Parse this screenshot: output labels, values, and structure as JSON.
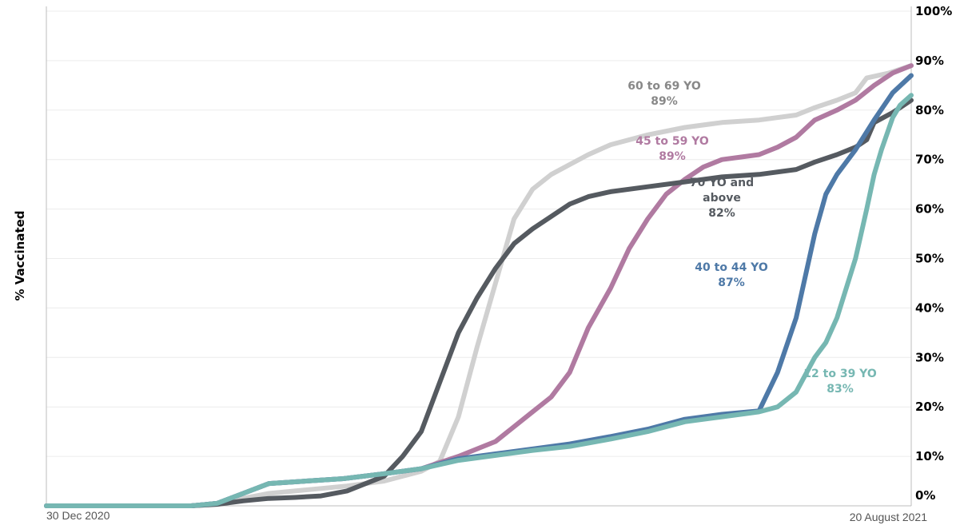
{
  "chart_data": {
    "type": "line",
    "ylabel": "% Vaccinated",
    "xlabel": "",
    "x_start_label": "30 Dec 2020",
    "x_end_label": "20 August 2021",
    "x_range": [
      "2020-12-30",
      "2021-08-20"
    ],
    "ylim": [
      0,
      100
    ],
    "y_ticks": [
      "0%",
      "10%",
      "20%",
      "30%",
      "40%",
      "50%",
      "60%",
      "70%",
      "80%",
      "90%",
      "100%"
    ],
    "y_axis_side": "right",
    "grid": true,
    "legend": "inline labels",
    "series": [
      {
        "name": "60 to 69 YO",
        "final_label": "89%",
        "color": "#d0d0d0",
        "points": [
          [
            "2020-12-30",
            0
          ],
          [
            "2021-02-07",
            0
          ],
          [
            "2021-02-14",
            0.5
          ],
          [
            "2021-02-21",
            1.5
          ],
          [
            "2021-02-28",
            2.5
          ],
          [
            "2021-03-07",
            3
          ],
          [
            "2021-03-14",
            3.5
          ],
          [
            "2021-03-21",
            4
          ],
          [
            "2021-03-31",
            5
          ],
          [
            "2021-04-05",
            6
          ],
          [
            "2021-04-10",
            7
          ],
          [
            "2021-04-15",
            9
          ],
          [
            "2021-04-20",
            18
          ],
          [
            "2021-04-25",
            32
          ],
          [
            "2021-04-30",
            45
          ],
          [
            "2021-05-05",
            58
          ],
          [
            "2021-05-10",
            64
          ],
          [
            "2021-05-15",
            67
          ],
          [
            "2021-05-20",
            69
          ],
          [
            "2021-05-25",
            71
          ],
          [
            "2021-05-31",
            73
          ],
          [
            "2021-06-10",
            75
          ],
          [
            "2021-06-20",
            76.5
          ],
          [
            "2021-06-30",
            77.5
          ],
          [
            "2021-07-10",
            78
          ],
          [
            "2021-07-20",
            79
          ],
          [
            "2021-07-25",
            80.5
          ],
          [
            "2021-07-31",
            82
          ],
          [
            "2021-08-05",
            83.5
          ],
          [
            "2021-08-08",
            86.5
          ],
          [
            "2021-08-14",
            87.5
          ],
          [
            "2021-08-20",
            89
          ]
        ]
      },
      {
        "name": "45 to 59 YO",
        "final_label": "89%",
        "color": "#b07aa1",
        "points": [
          [
            "2020-12-30",
            0
          ],
          [
            "2021-02-07",
            0
          ],
          [
            "2021-02-14",
            0.5
          ],
          [
            "2021-02-21",
            2.5
          ],
          [
            "2021-02-28",
            4.5
          ],
          [
            "2021-03-10",
            5
          ],
          [
            "2021-03-20",
            5.5
          ],
          [
            "2021-03-31",
            6.5
          ],
          [
            "2021-04-10",
            7.5
          ],
          [
            "2021-04-20",
            10
          ],
          [
            "2021-04-30",
            13
          ],
          [
            "2021-05-10",
            19
          ],
          [
            "2021-05-15",
            22
          ],
          [
            "2021-05-20",
            27
          ],
          [
            "2021-05-25",
            36
          ],
          [
            "2021-05-31",
            44
          ],
          [
            "2021-06-05",
            52
          ],
          [
            "2021-06-10",
            58
          ],
          [
            "2021-06-15",
            63
          ],
          [
            "2021-06-20",
            66
          ],
          [
            "2021-06-25",
            68.5
          ],
          [
            "2021-06-30",
            70
          ],
          [
            "2021-07-05",
            70.5
          ],
          [
            "2021-07-10",
            71
          ],
          [
            "2021-07-15",
            72.5
          ],
          [
            "2021-07-20",
            74.5
          ],
          [
            "2021-07-25",
            78
          ],
          [
            "2021-07-31",
            80
          ],
          [
            "2021-08-05",
            82
          ],
          [
            "2021-08-10",
            85
          ],
          [
            "2021-08-15",
            87.5
          ],
          [
            "2021-08-20",
            89
          ]
        ]
      },
      {
        "name": "70 YO and above",
        "final_label": "82%",
        "color": "#555a60",
        "points": [
          [
            "2020-12-30",
            0
          ],
          [
            "2021-02-07",
            0
          ],
          [
            "2021-02-14",
            0.3
          ],
          [
            "2021-02-21",
            1
          ],
          [
            "2021-02-28",
            1.5
          ],
          [
            "2021-03-07",
            1.7
          ],
          [
            "2021-03-14",
            2
          ],
          [
            "2021-03-21",
            3
          ],
          [
            "2021-03-31",
            6
          ],
          [
            "2021-04-05",
            10
          ],
          [
            "2021-04-10",
            15
          ],
          [
            "2021-04-15",
            25
          ],
          [
            "2021-04-20",
            35
          ],
          [
            "2021-04-25",
            42
          ],
          [
            "2021-04-30",
            48
          ],
          [
            "2021-05-05",
            53
          ],
          [
            "2021-05-10",
            56
          ],
          [
            "2021-05-15",
            58.5
          ],
          [
            "2021-05-20",
            61
          ],
          [
            "2021-05-25",
            62.5
          ],
          [
            "2021-05-31",
            63.5
          ],
          [
            "2021-06-10",
            64.5
          ],
          [
            "2021-06-20",
            65.5
          ],
          [
            "2021-06-30",
            66.5
          ],
          [
            "2021-07-10",
            67
          ],
          [
            "2021-07-20",
            68
          ],
          [
            "2021-07-25",
            69.5
          ],
          [
            "2021-07-31",
            71
          ],
          [
            "2021-08-05",
            72.5
          ],
          [
            "2021-08-08",
            74
          ],
          [
            "2021-08-10",
            77.5
          ],
          [
            "2021-08-15",
            79.5
          ],
          [
            "2021-08-20",
            82
          ]
        ]
      },
      {
        "name": "40 to 44 YO",
        "final_label": "87%",
        "color": "#4e79a7",
        "points": [
          [
            "2020-12-30",
            0
          ],
          [
            "2021-02-07",
            0
          ],
          [
            "2021-02-14",
            0.5
          ],
          [
            "2021-02-21",
            2.5
          ],
          [
            "2021-02-28",
            4.5
          ],
          [
            "2021-03-10",
            5
          ],
          [
            "2021-03-20",
            5.5
          ],
          [
            "2021-03-31",
            6.5
          ],
          [
            "2021-04-10",
            7.5
          ],
          [
            "2021-04-20",
            9.5
          ],
          [
            "2021-04-30",
            10.5
          ],
          [
            "2021-05-10",
            11.5
          ],
          [
            "2021-05-20",
            12.5
          ],
          [
            "2021-05-31",
            14
          ],
          [
            "2021-06-10",
            15.5
          ],
          [
            "2021-06-20",
            17.5
          ],
          [
            "2021-06-30",
            18.5
          ],
          [
            "2021-07-10",
            19.2
          ],
          [
            "2021-07-15",
            27
          ],
          [
            "2021-07-20",
            38
          ],
          [
            "2021-07-25",
            55
          ],
          [
            "2021-07-28",
            63
          ],
          [
            "2021-07-31",
            67
          ],
          [
            "2021-08-05",
            72
          ],
          [
            "2021-08-10",
            78
          ],
          [
            "2021-08-15",
            83.5
          ],
          [
            "2021-08-20",
            87
          ]
        ]
      },
      {
        "name": "12 to 39 YO",
        "final_label": "83%",
        "color": "#76b7b2",
        "points": [
          [
            "2020-12-30",
            0
          ],
          [
            "2021-02-07",
            0
          ],
          [
            "2021-02-14",
            0.5
          ],
          [
            "2021-02-21",
            2.5
          ],
          [
            "2021-02-28",
            4.5
          ],
          [
            "2021-03-10",
            5
          ],
          [
            "2021-03-20",
            5.5
          ],
          [
            "2021-03-31",
            6.5
          ],
          [
            "2021-04-10",
            7.5
          ],
          [
            "2021-04-20",
            9.2
          ],
          [
            "2021-04-30",
            10.2
          ],
          [
            "2021-05-10",
            11.2
          ],
          [
            "2021-05-20",
            12
          ],
          [
            "2021-05-31",
            13.5
          ],
          [
            "2021-06-10",
            15
          ],
          [
            "2021-06-20",
            17
          ],
          [
            "2021-06-30",
            18
          ],
          [
            "2021-07-10",
            19
          ],
          [
            "2021-07-15",
            20
          ],
          [
            "2021-07-20",
            23
          ],
          [
            "2021-07-25",
            30
          ],
          [
            "2021-07-28",
            33
          ],
          [
            "2021-07-31",
            38
          ],
          [
            "2021-08-05",
            50
          ],
          [
            "2021-08-08",
            60
          ],
          [
            "2021-08-10",
            67
          ],
          [
            "2021-08-12",
            72
          ],
          [
            "2021-08-15",
            78.5
          ],
          [
            "2021-08-17",
            81
          ],
          [
            "2021-08-20",
            83
          ]
        ]
      }
    ],
    "annotations": [
      {
        "series": "60 to 69 YO",
        "lines": [
          "60 to 69 YO",
          "89%"
        ],
        "color": "#888888"
      },
      {
        "series": "45 to 59 YO",
        "lines": [
          "45 to 59 YO",
          "89%"
        ],
        "color": "#b07aa1"
      },
      {
        "series": "70 YO and above",
        "lines": [
          "70 YO and",
          "above",
          "82%"
        ],
        "color": "#555a60"
      },
      {
        "series": "40 to 44 YO",
        "lines": [
          "40 to 44 YO",
          "87%"
        ],
        "color": "#4e79a7"
      },
      {
        "series": "12 to 39 YO",
        "lines": [
          "12 to 39 YO",
          "83%"
        ],
        "color": "#76b7b2"
      }
    ]
  }
}
